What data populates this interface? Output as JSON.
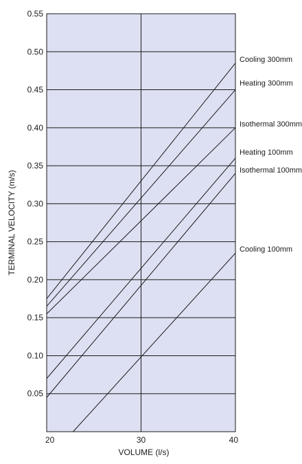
{
  "chart_data": {
    "type": "line",
    "title": "",
    "xlabel": "VOLUME (l/s)",
    "ylabel": "TERMINAL VELOCITY (m/s)",
    "xlim": [
      20,
      40
    ],
    "ylim": [
      0,
      0.55
    ],
    "x_ticks": [
      20,
      30,
      40
    ],
    "x_tick_labels": [
      "20",
      "30",
      "40"
    ],
    "y_ticks": [
      0.05,
      0.1,
      0.15,
      0.2,
      0.25,
      0.3,
      0.35,
      0.4,
      0.45,
      0.5,
      0.55
    ],
    "y_tick_labels": [
      "0.05",
      "0.10",
      "0.15",
      "0.20",
      "0.25",
      "0.30",
      "0.35",
      "0.40",
      "0.45",
      "0.50",
      "0.55"
    ],
    "grid": true,
    "legend": "labels at right end of each line",
    "colors": {
      "plot_background": "#dde0f2",
      "line": "#1a1a1a",
      "grid": "#1a1a1a"
    },
    "series": [
      {
        "name": "Cooling 300mm",
        "x": [
          20,
          40
        ],
        "y": [
          0.175,
          0.485
        ]
      },
      {
        "name": "Heating 300mm",
        "x": [
          20,
          40
        ],
        "y": [
          0.165,
          0.45
        ]
      },
      {
        "name": "Isothermal 300mm",
        "x": [
          20,
          40
        ],
        "y": [
          0.155,
          0.4
        ]
      },
      {
        "name": "Heating 100mm",
        "x": [
          20,
          40
        ],
        "y": [
          0.07,
          0.36
        ]
      },
      {
        "name": "Isothermal 100mm",
        "x": [
          20,
          40
        ],
        "y": [
          0.045,
          0.34
        ]
      },
      {
        "name": "Cooling 100mm",
        "x": [
          22.8,
          40
        ],
        "y": [
          0.0,
          0.235
        ]
      }
    ]
  }
}
